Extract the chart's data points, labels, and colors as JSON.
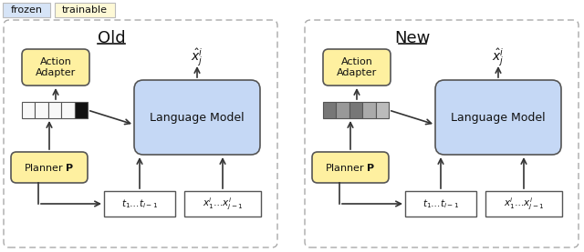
{
  "fig_width": 6.4,
  "fig_height": 2.77,
  "bg_color": "#ffffff",
  "legend_frozen_color": "#d6e4f7",
  "legend_trainable_color": "#fef9d6",
  "old_title": "Old",
  "new_title": "New",
  "panel_border_color": "#aaaaaa",
  "box_blue_color": "#c5d8f5",
  "box_yellow_color": "#fef0a0",
  "box_white_color": "#ffffff",
  "box_border_color": "#555555",
  "arrow_color": "#333333",
  "text_color": "#111111",
  "frozen_label": "frozen",
  "trainable_label": "trainable",
  "action_adapter_label": "Action\nAdapter",
  "planner_label": "Planner ",
  "language_model_label": "Language Model",
  "t1_label": "$t_1 \\ldots t_{i-1}$",
  "x1_label": "$x_1^i \\ldots x_{j-1}^i$",
  "xhat_label": "$\\hat{x}_j^i$",
  "old_emb_colors": [
    "#f8f8f8",
    "#f8f8f8",
    "#f8f8f8",
    "#f8f8f8",
    "#111111"
  ],
  "new_emb_colors": [
    "#777777",
    "#999999",
    "#777777",
    "#aaaaaa",
    "#bbbbbb"
  ]
}
